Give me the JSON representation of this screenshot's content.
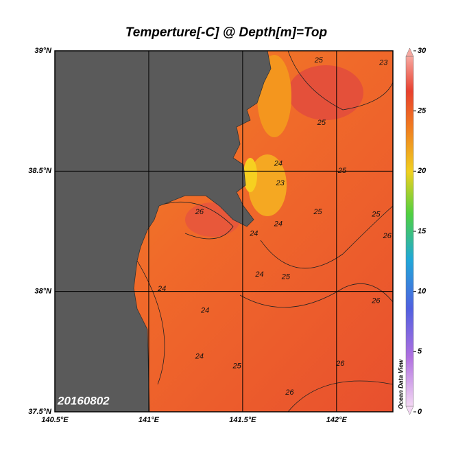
{
  "title": "Temperture[-C] @ Depth[m]=Top",
  "date": "20160802",
  "watermark": "Ocean Data View",
  "map": {
    "lon_range": [
      140.5,
      142.3
    ],
    "lat_range": [
      37.5,
      39
    ],
    "lon_ticks": [
      {
        "value": 140.5,
        "label": "140.5°E"
      },
      {
        "value": 141,
        "label": "141°E"
      },
      {
        "value": 141.5,
        "label": "141.5°E"
      },
      {
        "value": 142,
        "label": "142°E"
      }
    ],
    "lat_ticks": [
      {
        "value": 37.5,
        "label": "37.5°N"
      },
      {
        "value": 38,
        "label": "38°N"
      },
      {
        "value": 38.5,
        "label": "38.5°N"
      },
      {
        "value": 39,
        "label": "39°N"
      }
    ],
    "contour_labels": [
      {
        "value": 25,
        "lon": 141.905,
        "lat": 38.96
      },
      {
        "value": 23,
        "lon": 142.25,
        "lat": 38.95
      },
      {
        "value": 25,
        "lon": 141.92,
        "lat": 38.7
      },
      {
        "value": 24,
        "lon": 141.69,
        "lat": 38.53
      },
      {
        "value": 23,
        "lon": 141.7,
        "lat": 38.45
      },
      {
        "value": 25,
        "lon": 141.9,
        "lat": 38.33
      },
      {
        "value": 24,
        "lon": 141.69,
        "lat": 38.28
      },
      {
        "value": 26,
        "lon": 141.27,
        "lat": 38.33
      },
      {
        "value": 24,
        "lon": 141.56,
        "lat": 38.24
      },
      {
        "value": 24,
        "lon": 141.59,
        "lat": 38.07
      },
      {
        "value": 25,
        "lon": 141.73,
        "lat": 38.06
      },
      {
        "value": 24,
        "lon": 141.07,
        "lat": 38.01
      },
      {
        "value": 24,
        "lon": 141.3,
        "lat": 37.92
      },
      {
        "value": 24,
        "lon": 141.27,
        "lat": 37.73
      },
      {
        "value": 25,
        "lon": 141.47,
        "lat": 37.69
      },
      {
        "value": 26,
        "lon": 142.02,
        "lat": 37.7
      },
      {
        "value": 26,
        "lon": 141.75,
        "lat": 37.58
      },
      {
        "value": 26,
        "lon": 142.21,
        "lat": 37.96
      },
      {
        "value": 26,
        "lon": 142.27,
        "lat": 38.23
      },
      {
        "value": 25,
        "lon": 142.21,
        "lat": 38.32
      },
      {
        "value": 25,
        "lon": 142.03,
        "lat": 38.5
      }
    ]
  },
  "colorbar": {
    "range": [
      0,
      30
    ],
    "ticks": [
      0,
      5,
      10,
      15,
      20,
      25,
      30
    ]
  }
}
